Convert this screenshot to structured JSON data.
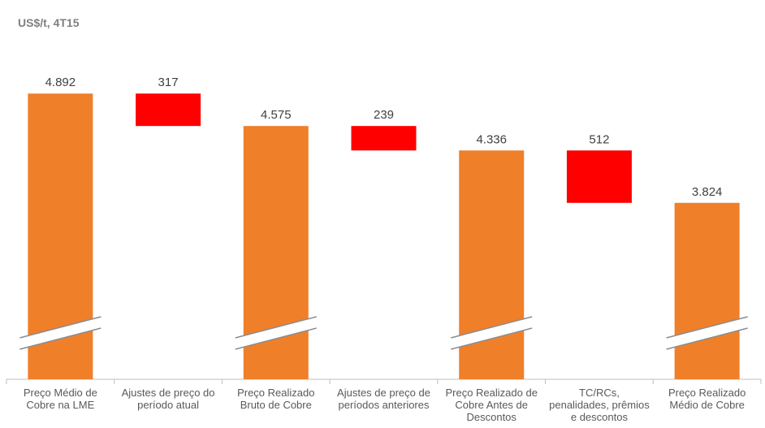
{
  "chart_data": {
    "type": "waterfall",
    "title": "US$/t, 4T15",
    "categories": [
      "Preço Médio de Cobre na LME",
      "Ajustes de preço do período atual",
      "Preço Realizado Bruto de Cobre",
      "Ajustes de preço de períodos anteriores",
      "Preço Realizado de Cobre Antes de Descontos",
      "TC/RCs, penalidades, prêmios e descontos",
      "Preço Realizado Médio de Cobre"
    ],
    "values": [
      4892,
      -317,
      4575,
      -239,
      4336,
      -512,
      3824
    ],
    "value_labels": [
      "4.892",
      "317",
      "4.575",
      "239",
      "4.336",
      "512",
      "3.824"
    ],
    "colors": {
      "total": "#f07f2a",
      "decrease": "#ff0000"
    },
    "ylim": [
      2100,
      5100
    ],
    "axis_break": true
  }
}
